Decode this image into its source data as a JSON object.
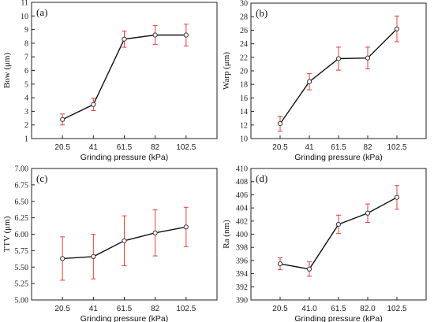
{
  "chart_data": [
    {
      "type": "line",
      "panel_label": "(a)",
      "xlabel": "Grinding pressure (kPa)",
      "ylabel": "Bow (μm)",
      "categories": [
        "20.5",
        "41",
        "61.5",
        "82",
        "102.5"
      ],
      "ylim": [
        1,
        11
      ],
      "yticks": [
        1,
        2,
        3,
        4,
        5,
        6,
        7,
        8,
        9,
        10,
        11
      ],
      "ytick_labels": [
        "1",
        "2",
        "3",
        "4",
        "5",
        "6",
        "7",
        "8",
        "9",
        "10",
        "11"
      ],
      "series": [
        {
          "values": [
            2.4,
            3.5,
            8.3,
            8.6,
            8.6
          ],
          "errors": [
            0.4,
            0.45,
            0.6,
            0.7,
            0.8
          ]
        }
      ],
      "grid": false,
      "line_color": "#111111",
      "error_color": "#e0403a"
    },
    {
      "type": "line",
      "panel_label": "(b)",
      "xlabel": "Grinding pressure (kPa)",
      "ylabel": "Warp (μm)",
      "categories": [
        "20.5",
        "41",
        "61.5",
        "82",
        "102.5"
      ],
      "ylim": [
        10,
        30
      ],
      "yticks": [
        10,
        12,
        14,
        16,
        18,
        20,
        22,
        24,
        26,
        28,
        30
      ],
      "ytick_labels": [
        "10",
        "12",
        "14",
        "16",
        "18",
        "20",
        "22",
        "24",
        "26",
        "28",
        "30"
      ],
      "series": [
        {
          "values": [
            12.2,
            18.4,
            21.8,
            21.9,
            26.2
          ],
          "errors": [
            1.1,
            1.2,
            1.7,
            1.6,
            1.9
          ]
        }
      ],
      "grid": false,
      "line_color": "#111111",
      "error_color": "#e0403a"
    },
    {
      "type": "line",
      "panel_label": "(c)",
      "xlabel": "Grinding pressure (kPa)",
      "ylabel": "TTV (μm)",
      "categories": [
        "20.5",
        "41",
        "61.5",
        "82",
        "102.5"
      ],
      "ylim": [
        5.0,
        7.0
      ],
      "yticks": [
        5.0,
        5.25,
        5.5,
        5.75,
        6.0,
        6.25,
        6.5,
        6.75,
        7.0
      ],
      "ytick_labels": [
        "5.00",
        "5.25",
        "5.50",
        "5.75",
        "6.00",
        "6.25",
        "6.50",
        "6.75",
        "7.00"
      ],
      "series": [
        {
          "values": [
            5.63,
            5.66,
            5.9,
            6.02,
            6.11
          ],
          "errors": [
            0.33,
            0.34,
            0.38,
            0.35,
            0.3
          ]
        }
      ],
      "grid": false,
      "line_color": "#111111",
      "error_color": "#e0403a"
    },
    {
      "type": "line",
      "panel_label": "(d)",
      "xlabel": "Grinding pressure (kPa)",
      "ylabel": "Ra (nm)",
      "categories": [
        "20.5",
        "41.0",
        "61.5",
        "82.0",
        "102.5"
      ],
      "ylim": [
        390,
        410
      ],
      "yticks": [
        390,
        392,
        394,
        396,
        398,
        400,
        402,
        404,
        406,
        408,
        410
      ],
      "ytick_labels": [
        "390",
        "392",
        "394",
        "396",
        "398",
        "400",
        "402",
        "404",
        "406",
        "408",
        "410"
      ],
      "series": [
        {
          "values": [
            395.5,
            394.7,
            401.5,
            403.2,
            405.6
          ],
          "errors": [
            0.9,
            1.1,
            1.4,
            1.4,
            1.8
          ]
        }
      ],
      "grid": false,
      "line_color": "#111111",
      "error_color": "#e0403a"
    }
  ]
}
